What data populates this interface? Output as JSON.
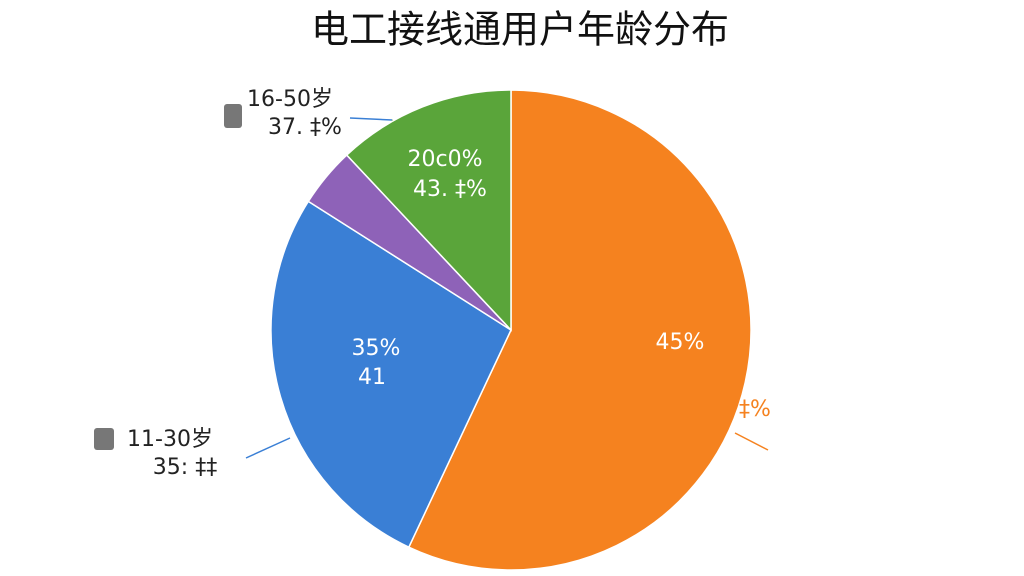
{
  "chart_data": {
    "type": "pie",
    "title": "电工接线通用户年龄分布",
    "categories": [
      null,
      "11-30岁",
      null,
      "16-50岁"
    ],
    "values": [
      57,
      27,
      4,
      12
    ],
    "colors": [
      "#f5821f",
      "#3a7fd5",
      "#8e62b8",
      "#5aa53a"
    ],
    "annotations": [
      "45%",
      "35%",
      "41",
      "20c0%",
      "43. ‡%",
      "37. ‡%",
      "35: ‡‡",
      "‡%"
    ]
  }
}
